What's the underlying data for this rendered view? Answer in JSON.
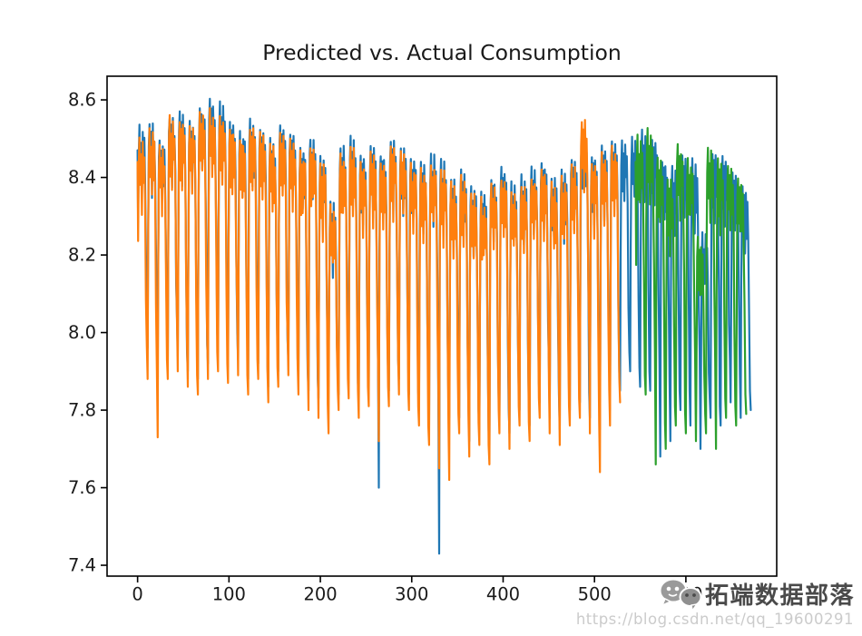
{
  "chart_data": {
    "type": "line",
    "title": "Predicted vs. Actual Consumption",
    "xlabel": "",
    "ylabel": "",
    "x_ticks": [
      0,
      100,
      200,
      300,
      400,
      500,
      600
    ],
    "y_ticks": [
      7.4,
      7.6,
      7.8,
      8.0,
      8.2,
      8.4,
      8.6
    ],
    "xlim": [
      -33.4,
      699.4
    ],
    "ylim": [
      7.372,
      8.661
    ],
    "grid": false,
    "legend_position": "none",
    "cycle_period": 11,
    "cycle_format": [
      "x_start",
      "peak",
      "trough_at_cycle_end"
    ],
    "series": [
      {
        "name": "actual-consumption",
        "color": "#1f77b4",
        "cycles": [
          [
            0,
            8.53,
            7.96
          ],
          [
            11,
            8.54,
            7.9
          ],
          [
            22,
            8.5,
            7.92
          ],
          [
            33,
            8.56,
            7.94
          ],
          [
            44,
            8.57,
            7.9
          ],
          [
            55,
            8.55,
            7.88
          ],
          [
            66,
            8.58,
            7.92
          ],
          [
            77,
            8.6,
            7.95
          ],
          [
            88,
            8.59,
            7.91
          ],
          [
            99,
            8.55,
            7.93
          ],
          [
            110,
            8.52,
            7.88
          ],
          [
            121,
            8.55,
            7.92
          ],
          [
            132,
            8.53,
            7.86
          ],
          [
            143,
            8.5,
            7.9
          ],
          [
            154,
            8.54,
            7.93
          ],
          [
            165,
            8.52,
            7.88
          ],
          [
            176,
            8.48,
            7.85
          ],
          [
            187,
            8.5,
            7.83
          ],
          [
            198,
            8.46,
            7.9
          ],
          [
            209,
            8.34,
            7.84
          ],
          [
            220,
            8.48,
            7.87
          ],
          [
            231,
            8.5,
            7.82
          ],
          [
            242,
            8.46,
            7.85
          ],
          [
            253,
            8.48,
            7.6
          ],
          [
            264,
            8.46,
            7.85
          ],
          [
            275,
            8.5,
            7.88
          ],
          [
            286,
            8.48,
            7.84
          ],
          [
            297,
            8.45,
            7.8
          ],
          [
            308,
            8.44,
            7.76
          ],
          [
            319,
            8.46,
            7.43
          ],
          [
            330,
            8.44,
            7.78
          ],
          [
            341,
            8.4,
            7.78
          ],
          [
            352,
            8.42,
            7.72
          ],
          [
            363,
            8.38,
            7.75
          ],
          [
            374,
            8.36,
            7.7
          ],
          [
            385,
            8.4,
            7.78
          ],
          [
            396,
            8.42,
            7.74
          ],
          [
            407,
            8.38,
            7.8
          ],
          [
            418,
            8.4,
            7.76
          ],
          [
            429,
            8.42,
            7.82
          ],
          [
            440,
            8.44,
            7.78
          ],
          [
            451,
            8.4,
            7.75
          ],
          [
            462,
            8.42,
            7.8
          ],
          [
            473,
            8.45,
            7.82
          ],
          [
            484,
            8.5,
            7.78
          ],
          [
            495,
            8.46,
            7.75
          ],
          [
            506,
            8.48,
            7.8
          ],
          [
            517,
            8.5,
            7.85
          ],
          [
            528,
            8.49,
            7.9
          ],
          [
            539,
            8.5,
            7.86
          ],
          [
            550,
            8.52,
            7.85
          ],
          [
            561,
            8.5,
            7.68
          ],
          [
            572,
            8.45,
            7.72
          ],
          [
            583,
            8.42,
            7.8
          ],
          [
            594,
            8.46,
            7.76
          ],
          [
            605,
            8.44,
            7.7
          ],
          [
            616,
            8.26,
            7.78
          ],
          [
            627,
            8.46,
            7.76
          ],
          [
            638,
            8.45,
            7.82
          ],
          [
            649,
            8.42,
            7.78
          ],
          [
            660,
            8.38,
            7.8
          ]
        ]
      },
      {
        "name": "predicted-train",
        "color": "#ff7f0e",
        "cycles": [
          [
            0,
            8.5,
            7.88
          ],
          [
            11,
            8.52,
            7.73
          ],
          [
            22,
            8.48,
            7.88
          ],
          [
            33,
            8.55,
            7.9
          ],
          [
            44,
            8.55,
            7.86
          ],
          [
            55,
            8.53,
            7.84
          ],
          [
            66,
            8.56,
            7.88
          ],
          [
            77,
            8.57,
            7.9
          ],
          [
            88,
            8.56,
            7.87
          ],
          [
            99,
            8.53,
            7.89
          ],
          [
            110,
            8.5,
            7.84
          ],
          [
            121,
            8.53,
            7.88
          ],
          [
            132,
            8.51,
            7.82
          ],
          [
            143,
            8.48,
            7.86
          ],
          [
            154,
            8.52,
            7.89
          ],
          [
            165,
            8.5,
            7.84
          ],
          [
            176,
            8.46,
            7.8
          ],
          [
            187,
            8.48,
            7.78
          ],
          [
            198,
            8.44,
            7.74
          ],
          [
            209,
            8.32,
            7.8
          ],
          [
            220,
            8.46,
            7.83
          ],
          [
            231,
            8.48,
            7.78
          ],
          [
            242,
            8.44,
            7.81
          ],
          [
            253,
            8.46,
            7.72
          ],
          [
            264,
            8.44,
            7.81
          ],
          [
            275,
            8.48,
            7.84
          ],
          [
            286,
            8.46,
            7.8
          ],
          [
            297,
            8.43,
            7.76
          ],
          [
            308,
            8.42,
            7.71
          ],
          [
            319,
            8.44,
            7.65
          ],
          [
            330,
            8.42,
            7.62
          ],
          [
            341,
            8.38,
            7.74
          ],
          [
            352,
            8.4,
            7.68
          ],
          [
            363,
            8.36,
            7.71
          ],
          [
            374,
            8.34,
            7.66
          ],
          [
            385,
            8.38,
            7.74
          ],
          [
            396,
            8.4,
            7.7
          ],
          [
            407,
            8.36,
            7.76
          ],
          [
            418,
            8.38,
            7.72
          ],
          [
            429,
            8.4,
            7.78
          ],
          [
            440,
            8.42,
            7.74
          ],
          [
            451,
            8.38,
            7.71
          ],
          [
            462,
            8.4,
            7.76
          ],
          [
            473,
            8.43,
            7.78
          ],
          [
            484,
            8.55,
            7.74
          ],
          [
            495,
            8.44,
            7.64
          ],
          [
            506,
            8.46,
            7.76
          ],
          [
            517,
            8.48,
            7.82
          ]
        ]
      },
      {
        "name": "predicted-test",
        "color": "#2ca02c",
        "cycles": [
          [
            545,
            8.5,
            7.84
          ],
          [
            556,
            8.52,
            7.66
          ],
          [
            567,
            8.45,
            7.7
          ],
          [
            578,
            8.4,
            7.76
          ],
          [
            589,
            8.48,
            7.74
          ],
          [
            600,
            8.44,
            7.72
          ],
          [
            611,
            8.24,
            7.74
          ],
          [
            622,
            8.47,
            7.7
          ],
          [
            633,
            8.44,
            7.78
          ],
          [
            644,
            8.43,
            7.76
          ],
          [
            655,
            8.4,
            7.79
          ]
        ]
      }
    ]
  },
  "watermark": {
    "brand": "拓端数据部落",
    "url": "https://blog.csdn.net/qq_19600291",
    "icon": "chat-bubbles-icon"
  }
}
